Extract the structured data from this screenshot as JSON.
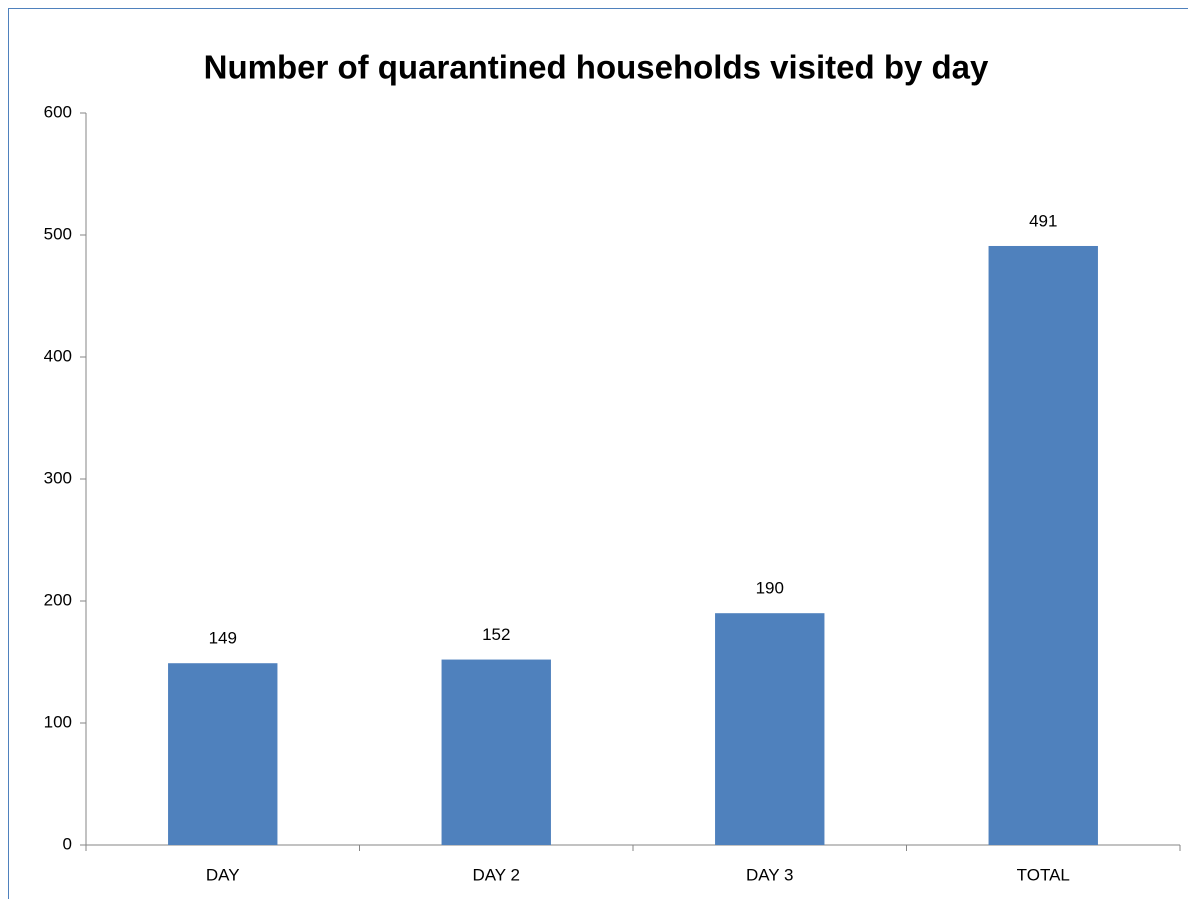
{
  "chart_data": {
    "type": "bar",
    "title": "Number of quarantined households visited by day",
    "categories": [
      "DAY",
      "DAY 2",
      "DAY 3",
      "TOTAL"
    ],
    "values": [
      149,
      152,
      190,
      491
    ],
    "color": "#4f81bd",
    "ylim": [
      0,
      600
    ],
    "yticks": [
      0,
      100,
      200,
      300,
      400,
      500,
      600
    ],
    "grid": false
  }
}
